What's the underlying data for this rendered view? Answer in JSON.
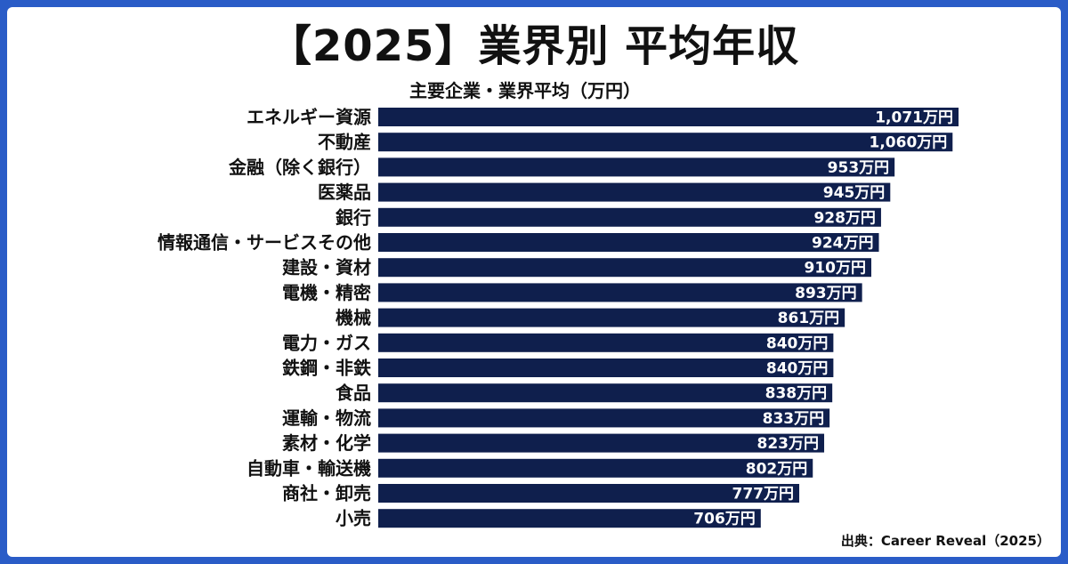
{
  "title": "【2025】業界別 平均年収",
  "subtitle": "主要企業・業界平均（万円）",
  "source": "出典：Career Reveal（2025）",
  "colors": {
    "bar": "#0f1f4d",
    "frame": "#2a5cc7",
    "text": "#111111",
    "value_text": "#ffffff"
  },
  "chart_data": {
    "type": "bar",
    "orientation": "horizontal",
    "title": "【2025】業界別 平均年収",
    "subtitle": "主要企業・業界平均（万円）",
    "unit": "万円",
    "categories": [
      "エネルギー資源",
      "不動産",
      "金融（除く銀行）",
      "医薬品",
      "銀行",
      "情報通信・サービスその他",
      "建設・資材",
      "電機・精密",
      "機械",
      "電力・ガス",
      "鉄鋼・非鉄",
      "食品",
      "運輸・物流",
      "素材・化学",
      "自動車・輸送機",
      "商社・卸売",
      "小売"
    ],
    "values": [
      1071,
      1060,
      953,
      945,
      928,
      924,
      910,
      893,
      861,
      840,
      840,
      838,
      833,
      823,
      802,
      777,
      706
    ],
    "value_labels": [
      "1,071万円",
      "1,060万円",
      "953万円",
      "945万円",
      "928万円",
      "924万円",
      "910万円",
      "893万円",
      "861万円",
      "840万円",
      "840万円",
      "838万円",
      "833万円",
      "823万円",
      "802万円",
      "777万円",
      "706万円"
    ],
    "xlim": [
      0,
      1071
    ],
    "grid": false,
    "legend": "none"
  }
}
